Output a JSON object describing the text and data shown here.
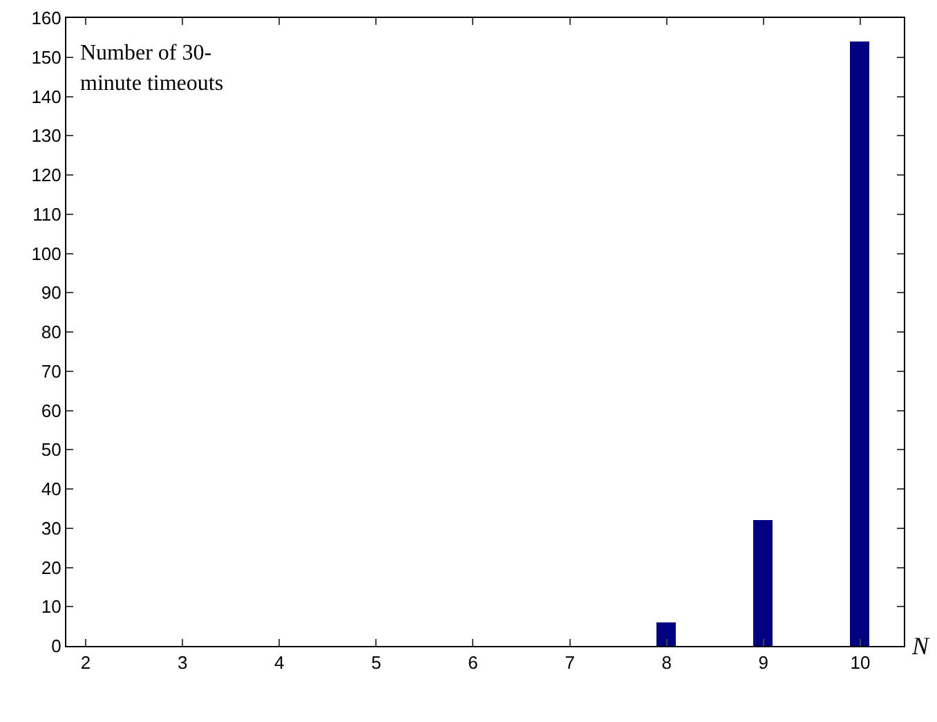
{
  "chart_data": {
    "type": "bar",
    "xlabel": "N",
    "ylabel": "Number of 30-minute timeouts",
    "x": [
      2,
      3,
      4,
      5,
      6,
      7,
      8,
      9,
      10
    ],
    "values": [
      0,
      0,
      0,
      0,
      0,
      0,
      6,
      32,
      154
    ],
    "color": "#000080",
    "xlim": [
      1.8,
      10.45
    ],
    "xticks": [
      2,
      3,
      4,
      5,
      6,
      7,
      8,
      9,
      10
    ],
    "ylim": [
      0,
      160
    ],
    "yticks": [
      0,
      10,
      20,
      30,
      40,
      50,
      60,
      70,
      80,
      90,
      100,
      110,
      120,
      130,
      140,
      150,
      160
    ],
    "grid": false,
    "legend": false
  }
}
